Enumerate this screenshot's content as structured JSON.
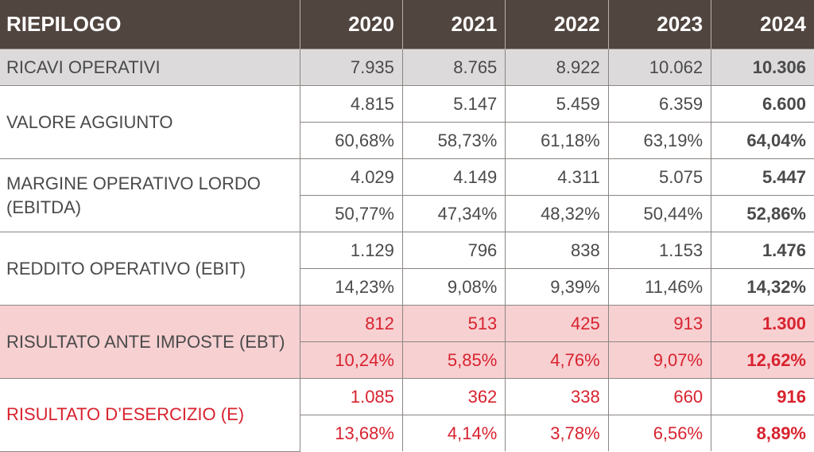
{
  "header": {
    "title": "RIEPILOGO",
    "years": [
      "2020",
      "2021",
      "2022",
      "2023",
      "2024"
    ]
  },
  "sections": [
    {
      "label": "RICAVI OPERATIVI",
      "style": "gray",
      "rows": [
        [
          "7.935",
          "8.765",
          "8.922",
          "10.062",
          "10.306"
        ]
      ]
    },
    {
      "label": "VALORE AGGIUNTO",
      "style": "",
      "rows": [
        [
          "4.815",
          "5.147",
          "5.459",
          "6.359",
          "6.600"
        ],
        [
          "60,68%",
          "58,73%",
          "61,18%",
          "63,19%",
          "64,04%"
        ]
      ]
    },
    {
      "label": "MARGINE OPERATIVO LORDO (EBITDA)",
      "style": "",
      "rows": [
        [
          "4.029",
          "4.149",
          "4.311",
          "5.075",
          "5.447"
        ],
        [
          "50,77%",
          "47,34%",
          "48,32%",
          "50,44%",
          "52,86%"
        ]
      ]
    },
    {
      "label": "REDDITO OPERATIVO (EBIT)",
      "style": "",
      "rows": [
        [
          "1.129",
          "796",
          "838",
          "1.153",
          "1.476"
        ],
        [
          "14,23%",
          "9,08%",
          "9,39%",
          "11,46%",
          "14,32%"
        ]
      ]
    },
    {
      "label": "RISULTATO ANTE IMPOSTE (EBT)",
      "style": "pink",
      "rows": [
        [
          "812",
          "513",
          "425",
          "913",
          "1.300"
        ],
        [
          "10,24%",
          "5,85%",
          "4,76%",
          "9,07%",
          "12,62%"
        ]
      ]
    },
    {
      "label": "RISULTATO D’ESERCIZIO (E)",
      "style": "red",
      "rows": [
        [
          "1.085",
          "362",
          "338",
          "660",
          "916"
        ],
        [
          "13,68%",
          "4,14%",
          "3,78%",
          "6,56%",
          "8,89%"
        ]
      ]
    }
  ],
  "colors": {
    "header_bg": "#51453f",
    "gray_row": "#dcdada",
    "pink_row": "#f7d0d2",
    "red_text": "#d8232f"
  }
}
